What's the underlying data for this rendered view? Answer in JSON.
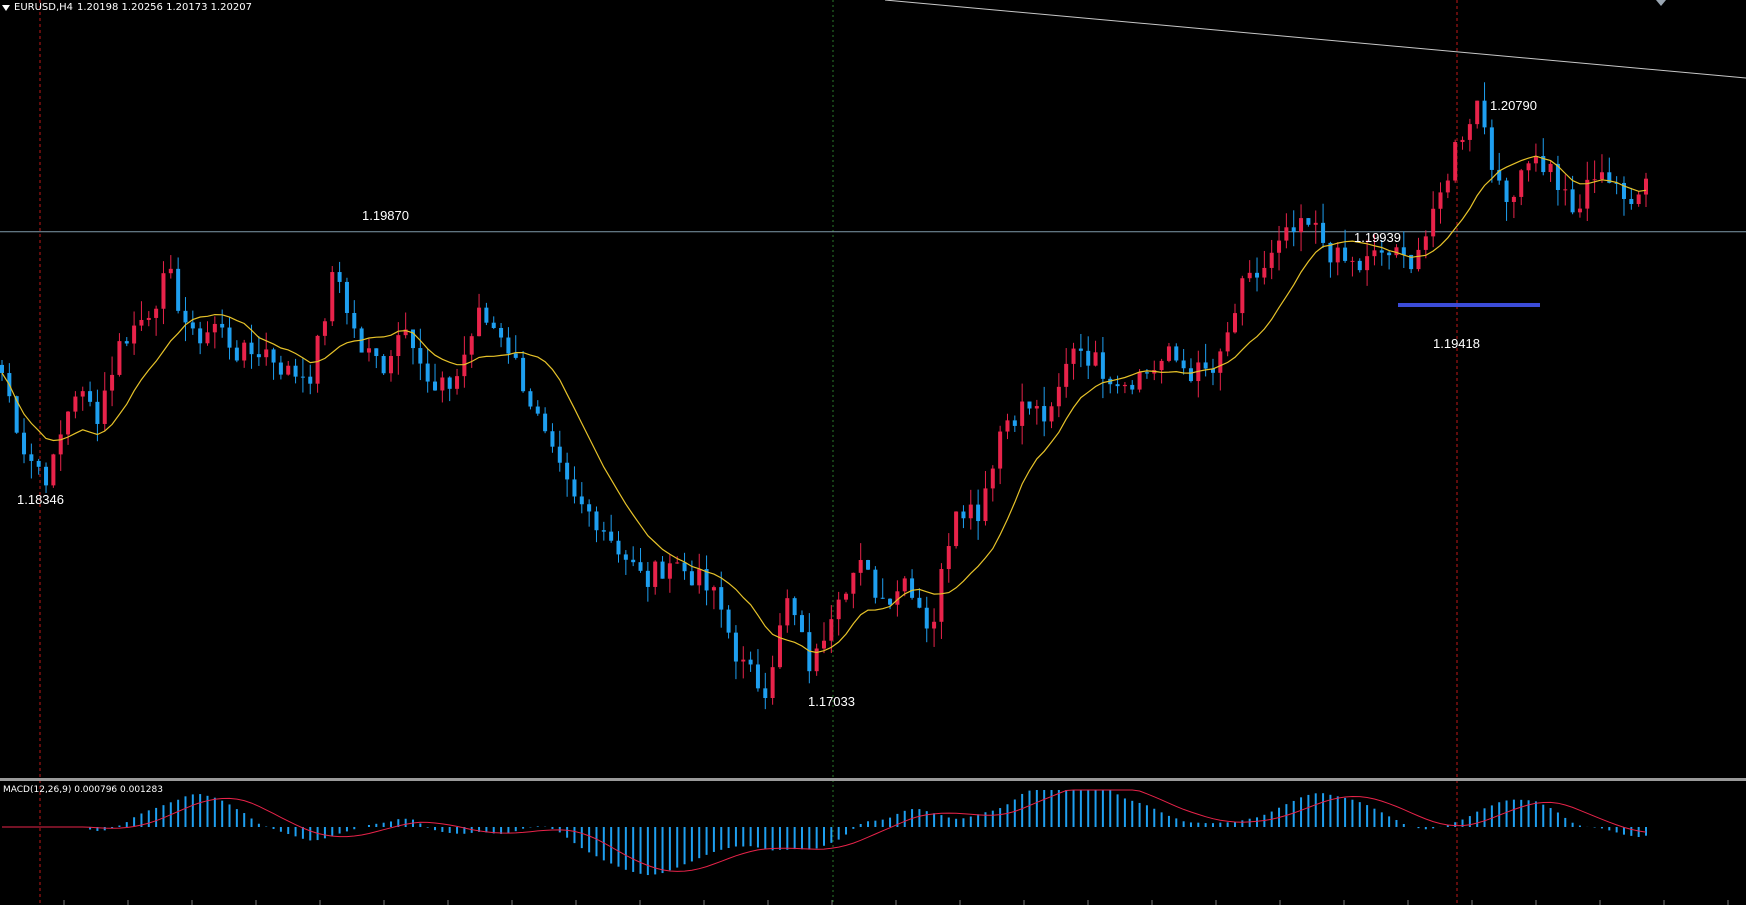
{
  "window": {
    "symbol": "EURUSD,H4",
    "ohlc": "1.20198 1.20256 1.20173 1.20207",
    "subwindow_title": "MACD(12,26,9) 0.000796 0.001283"
  },
  "annotations": {
    "low_left": "1.18346",
    "resistance": "1.19870",
    "low_bottom": "1.17033",
    "local_high": "1.19939",
    "support": "1.19418",
    "top_high": "1.20790"
  },
  "colors": {
    "background": "#000000",
    "bull": "#e8234a",
    "bear": "#1e9ff0",
    "ma": "#e6c229",
    "macd_hist": "#1e9ff0",
    "macd_signal": "#e8234a",
    "hline": "#7f9aaa",
    "trendline": "#c8c8c8",
    "support_line": "#3b4bd8",
    "vline_red": "#c01818",
    "vline_green": "#2a7a2a"
  },
  "chart_data": {
    "type": "candlestick",
    "symbol": "EURUSD",
    "timeframe": "H4",
    "price_range": [
      1.165,
      1.213
    ],
    "horizontal_level": 1.1987,
    "support_level": 1.19418,
    "labeled_prices": [
      1.18346,
      1.1987,
      1.17033,
      1.19939,
      1.19418,
      1.2079
    ],
    "price_path": [
      1.19,
      1.185,
      1.1835,
      1.189,
      1.1875,
      1.192,
      1.1935,
      1.196,
      1.192,
      1.193,
      1.191,
      1.1915,
      1.19,
      1.19,
      1.1965,
      1.1915,
      1.1905,
      1.1935,
      1.1885,
      1.1895,
      1.1935,
      1.1925,
      1.189,
      1.185,
      1.182,
      1.181,
      1.179,
      1.177,
      1.1785,
      1.1775,
      1.176,
      1.172,
      1.1705,
      1.176,
      1.1715,
      1.1765,
      1.178,
      1.176,
      1.1775,
      1.174,
      1.182,
      1.1815,
      1.187,
      1.188,
      1.187,
      1.192,
      1.1905,
      1.1895,
      1.19,
      1.191,
      1.19,
      1.19,
      1.195,
      1.1965,
      1.1985,
      1.199,
      1.197,
      1.1965,
      1.1975,
      1.1968,
      1.199,
      1.204,
      1.207,
      1.2,
      1.2035,
      1.2025,
      1.1995,
      1.203,
      1.2005,
      1.202
    ],
    "indicators": [
      {
        "name": "MA",
        "color": "#e6c229"
      },
      {
        "name": "MACD(12,26,9)",
        "main": 0.000796,
        "signal": 0.001283
      }
    ]
  }
}
